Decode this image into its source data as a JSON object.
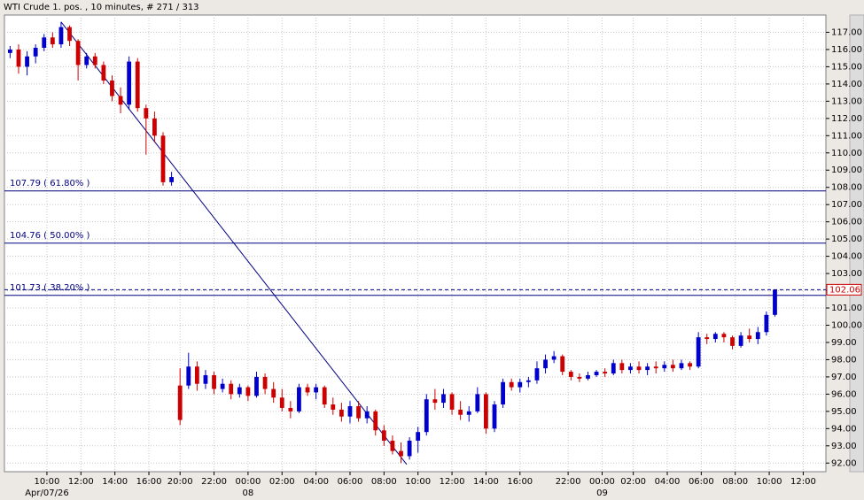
{
  "chart_data": {
    "type": "candlestick",
    "title": "WTI Crude 1. pos. , 10 minutes, # 271 / 313",
    "up_color": "#0000cc",
    "down_color": "#cc0000",
    "x": [
      2,
      5,
      8,
      11,
      14,
      17,
      20,
      23,
      26,
      29,
      32,
      35,
      38,
      41,
      44,
      47,
      50,
      53,
      56,
      59,
      62,
      65,
      68,
      71,
      74,
      77,
      80,
      83,
      86,
      89,
      92,
      95,
      98,
      101,
      104,
      107,
      110,
      113,
      116,
      119,
      122,
      125,
      128,
      131,
      134,
      137,
      140,
      143,
      146,
      149,
      152,
      155,
      158,
      161,
      164,
      167,
      170,
      173,
      176,
      179,
      182,
      185,
      188,
      191,
      194,
      197,
      200,
      203,
      206,
      209,
      212,
      215,
      218,
      221,
      224,
      227,
      230,
      233,
      236,
      239,
      242,
      245,
      248,
      251,
      254,
      257,
      260,
      263,
      266,
      269,
      272
    ],
    "values": [
      [
        115.8,
        116.2,
        115.5,
        116.0
      ],
      [
        116.0,
        116.3,
        114.6,
        115.0
      ],
      [
        115.0,
        115.9,
        114.5,
        115.6
      ],
      [
        115.6,
        116.3,
        115.2,
        116.1
      ],
      [
        116.1,
        116.9,
        115.9,
        116.7
      ],
      [
        116.7,
        117.0,
        116.1,
        116.3
      ],
      [
        116.3,
        117.6,
        116.1,
        117.3
      ],
      [
        117.3,
        117.4,
        116.2,
        116.5
      ],
      [
        116.5,
        116.6,
        114.2,
        115.1
      ],
      [
        115.1,
        115.8,
        114.9,
        115.6
      ],
      [
        115.6,
        115.8,
        114.9,
        115.1
      ],
      [
        115.1,
        115.3,
        114.0,
        114.2
      ],
      [
        114.2,
        114.5,
        113.0,
        113.3
      ],
      [
        113.3,
        113.8,
        112.3,
        112.8
      ],
      [
        112.8,
        115.6,
        112.5,
        115.3
      ],
      [
        115.3,
        115.5,
        112.4,
        112.6
      ],
      [
        112.6,
        112.8,
        109.9,
        112.0
      ],
      [
        112.0,
        112.4,
        110.6,
        111.0
      ],
      [
        111.0,
        111.2,
        108.1,
        108.3
      ],
      [
        108.3,
        108.9,
        108.1,
        108.6
      ],
      [
        96.5,
        97.5,
        94.2,
        94.5
      ],
      [
        96.5,
        98.4,
        96.3,
        97.6
      ],
      [
        97.6,
        97.9,
        96.2,
        96.6
      ],
      [
        96.6,
        97.4,
        96.3,
        97.1
      ],
      [
        97.1,
        97.3,
        96.0,
        96.3
      ],
      [
        96.3,
        96.9,
        96.1,
        96.6
      ],
      [
        96.6,
        96.8,
        95.7,
        96.0
      ],
      [
        96.0,
        96.6,
        95.8,
        96.4
      ],
      [
        96.4,
        96.5,
        95.6,
        95.9
      ],
      [
        95.9,
        97.3,
        95.8,
        97.0
      ],
      [
        97.0,
        97.2,
        96.0,
        96.3
      ],
      [
        96.3,
        96.7,
        95.5,
        95.8
      ],
      [
        95.8,
        96.3,
        95.0,
        95.2
      ],
      [
        95.2,
        95.6,
        94.6,
        95.0
      ],
      [
        95.0,
        96.6,
        94.9,
        96.4
      ],
      [
        96.4,
        96.6,
        95.9,
        96.1
      ],
      [
        96.1,
        96.6,
        95.7,
        96.4
      ],
      [
        96.4,
        96.5,
        95.2,
        95.4
      ],
      [
        95.4,
        95.8,
        94.8,
        95.1
      ],
      [
        95.1,
        95.5,
        94.4,
        94.7
      ],
      [
        94.7,
        95.6,
        94.3,
        95.3
      ],
      [
        95.3,
        95.6,
        94.4,
        94.6
      ],
      [
        94.6,
        95.3,
        94.3,
        95.0
      ],
      [
        95.0,
        95.1,
        93.6,
        93.9
      ],
      [
        93.9,
        94.2,
        93.0,
        93.3
      ],
      [
        93.3,
        93.6,
        92.5,
        92.7
      ],
      [
        92.7,
        93.2,
        92.0,
        92.4
      ],
      [
        92.4,
        93.5,
        92.2,
        93.3
      ],
      [
        93.3,
        94.1,
        92.6,
        93.8
      ],
      [
        93.8,
        96.0,
        93.6,
        95.7
      ],
      [
        95.7,
        96.3,
        95.1,
        95.5
      ],
      [
        95.5,
        96.3,
        95.2,
        96.0
      ],
      [
        96.0,
        96.1,
        94.8,
        95.1
      ],
      [
        95.1,
        95.6,
        94.5,
        94.8
      ],
      [
        94.8,
        95.3,
        94.4,
        95.0
      ],
      [
        95.0,
        96.4,
        94.9,
        96.0
      ],
      [
        96.0,
        96.1,
        93.7,
        94.0
      ],
      [
        94.0,
        95.6,
        93.8,
        95.4
      ],
      [
        95.4,
        96.9,
        95.2,
        96.7
      ],
      [
        96.7,
        96.9,
        96.2,
        96.4
      ],
      [
        96.4,
        96.9,
        96.1,
        96.7
      ],
      [
        96.7,
        97.0,
        96.4,
        96.8
      ],
      [
        96.8,
        97.9,
        96.6,
        97.5
      ],
      [
        97.5,
        98.3,
        97.2,
        98.0
      ],
      [
        98.0,
        98.5,
        97.8,
        98.2
      ],
      [
        98.2,
        98.3,
        97.1,
        97.3
      ],
      [
        97.3,
        97.4,
        96.8,
        97.0
      ],
      [
        97.0,
        97.2,
        96.7,
        96.9
      ],
      [
        96.9,
        97.3,
        96.8,
        97.1
      ],
      [
        97.1,
        97.4,
        97.0,
        97.3
      ],
      [
        97.3,
        97.5,
        97.0,
        97.2
      ],
      [
        97.2,
        98.0,
        97.1,
        97.8
      ],
      [
        97.8,
        98.0,
        97.2,
        97.4
      ],
      [
        97.4,
        97.8,
        97.2,
        97.6
      ],
      [
        97.6,
        97.9,
        97.2,
        97.4
      ],
      [
        97.4,
        97.8,
        97.1,
        97.6
      ],
      [
        97.6,
        97.9,
        97.2,
        97.5
      ],
      [
        97.5,
        97.9,
        97.3,
        97.7
      ],
      [
        97.7,
        98.0,
        97.3,
        97.5
      ],
      [
        97.5,
        98.0,
        97.4,
        97.8
      ],
      [
        97.8,
        97.9,
        97.4,
        97.6
      ],
      [
        97.6,
        99.6,
        97.5,
        99.3
      ],
      [
        99.3,
        99.5,
        98.9,
        99.2
      ],
      [
        99.2,
        99.6,
        99.0,
        99.5
      ],
      [
        99.5,
        99.6,
        99.0,
        99.3
      ],
      [
        99.3,
        99.4,
        98.6,
        98.8
      ],
      [
        98.8,
        99.6,
        98.7,
        99.4
      ],
      [
        99.4,
        99.8,
        99.0,
        99.2
      ],
      [
        99.2,
        99.9,
        98.9,
        99.6
      ],
      [
        99.6,
        100.8,
        99.4,
        100.6
      ],
      [
        100.6,
        102.06,
        100.5,
        102.06
      ]
    ],
    "xlim": [
      0,
      290
    ],
    "ylim": [
      91.5,
      118.0
    ],
    "xticks": [
      {
        "value": 15,
        "label": "10:00"
      },
      {
        "value": 27,
        "label": "12:00"
      },
      {
        "value": 39,
        "label": "14:00"
      },
      {
        "value": 51,
        "label": "16:00"
      },
      {
        "value": 62,
        "label": "20:00"
      },
      {
        "value": 74,
        "label": "22:00"
      },
      {
        "value": 86,
        "label": "00:00"
      },
      {
        "value": 98,
        "label": "02:00"
      },
      {
        "value": 110,
        "label": "04:00"
      },
      {
        "value": 122,
        "label": "06:00"
      },
      {
        "value": 134,
        "label": "08:00"
      },
      {
        "value": 146,
        "label": "10:00"
      },
      {
        "value": 158,
        "label": "12:00"
      },
      {
        "value": 170,
        "label": "14:00"
      },
      {
        "value": 182,
        "label": "16:00"
      },
      {
        "value": 199,
        "label": "22:00"
      },
      {
        "value": 211,
        "label": "00:00"
      },
      {
        "value": 222,
        "label": "02:00"
      },
      {
        "value": 234,
        "label": "04:00"
      },
      {
        "value": 246,
        "label": "06:00"
      },
      {
        "value": 258,
        "label": "08:00"
      },
      {
        "value": 270,
        "label": "10:00"
      },
      {
        "value": 282,
        "label": "12:00"
      }
    ],
    "date_labels": [
      {
        "value": 15,
        "label": "Apr/07/26"
      },
      {
        "value": 86,
        "label": "08"
      },
      {
        "value": 211,
        "label": "09"
      }
    ],
    "yticks": [
      {
        "value": 92,
        "label": "92.00"
      },
      {
        "value": 93,
        "label": "93.00"
      },
      {
        "value": 94,
        "label": "94.00"
      },
      {
        "value": 95,
        "label": "95.00"
      },
      {
        "value": 96,
        "label": "96.00"
      },
      {
        "value": 97,
        "label": "97.00"
      },
      {
        "value": 98,
        "label": "98.00"
      },
      {
        "value": 99,
        "label": "99.00"
      },
      {
        "value": 100,
        "label": "100.00"
      },
      {
        "value": 101,
        "label": "101.00"
      },
      {
        "value": 102,
        "label": "102.00"
      },
      {
        "value": 103,
        "label": "103.00"
      },
      {
        "value": 104,
        "label": "104.00"
      },
      {
        "value": 105,
        "label": "105.00"
      },
      {
        "value": 106,
        "label": "106.00"
      },
      {
        "value": 107,
        "label": "107.00"
      },
      {
        "value": 108,
        "label": "108.00"
      },
      {
        "value": 109,
        "label": "109.00"
      },
      {
        "value": 110,
        "label": "110.00"
      },
      {
        "value": 111,
        "label": "111.00"
      },
      {
        "value": 112,
        "label": "112.00"
      },
      {
        "value": 113,
        "label": "113.00"
      },
      {
        "value": 114,
        "label": "114.00"
      },
      {
        "value": 115,
        "label": "115.00"
      },
      {
        "value": 116,
        "label": "116.00"
      },
      {
        "value": 117,
        "label": "117.00"
      }
    ],
    "grid": true,
    "fib_color": "#000080",
    "fib_levels": [
      {
        "value": 107.79,
        "label": "107.79 ( 61.80% )"
      },
      {
        "value": 104.76,
        "label": "104.76 ( 50.00% )"
      },
      {
        "value": 101.73,
        "label": "101.73 ( 38.20% )"
      }
    ],
    "trend_line": {
      "x": [
        20,
        142
      ],
      "values": [
        117.6,
        91.92
      ]
    },
    "last_price": 102.06,
    "last_price_color": "#cc0000"
  }
}
